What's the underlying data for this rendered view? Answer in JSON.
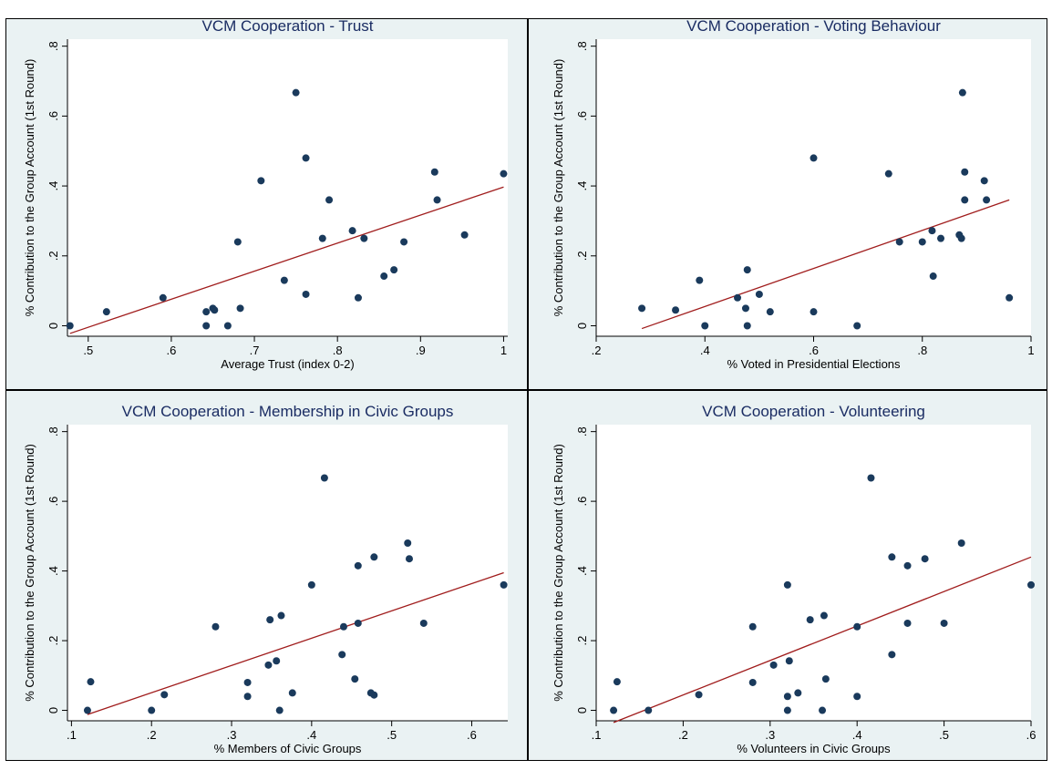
{
  "chart_data": [
    {
      "type": "scatter",
      "title": "VCM Cooperation - Trust",
      "xlabel": "Average Trust (index 0-2)",
      "ylabel": "% Contribution to the Group Account (1st Round)",
      "xlim": [
        0.475,
        1.005
      ],
      "ylim": [
        -0.03,
        0.82
      ],
      "xticks": [
        0.5,
        0.6,
        0.7,
        0.8,
        0.9,
        1
      ],
      "xtick_labels": [
        ".5",
        ".6",
        ".7",
        ".8",
        ".9",
        "1"
      ],
      "yticks": [
        0,
        0.2,
        0.4,
        0.6,
        0.8
      ],
      "ytick_labels": [
        "0",
        ".2",
        ".4",
        ".6",
        ".8"
      ],
      "grid": false,
      "points": [
        [
          0.478,
          0.0
        ],
        [
          0.522,
          0.04
        ],
        [
          0.59,
          0.08
        ],
        [
          0.642,
          0.0
        ],
        [
          0.642,
          0.04
        ],
        [
          0.65,
          0.05
        ],
        [
          0.652,
          0.045
        ],
        [
          0.668,
          0.0
        ],
        [
          0.68,
          0.24
        ],
        [
          0.683,
          0.05
        ],
        [
          0.708,
          0.415
        ],
        [
          0.736,
          0.13
        ],
        [
          0.75,
          0.667
        ],
        [
          0.762,
          0.48
        ],
        [
          0.762,
          0.09
        ],
        [
          0.782,
          0.25
        ],
        [
          0.79,
          0.36
        ],
        [
          0.818,
          0.272
        ],
        [
          0.825,
          0.08
        ],
        [
          0.832,
          0.25
        ],
        [
          0.856,
          0.142
        ],
        [
          0.868,
          0.16
        ],
        [
          0.88,
          0.24
        ],
        [
          0.917,
          0.44
        ],
        [
          0.92,
          0.36
        ],
        [
          0.953,
          0.26
        ],
        [
          1.0,
          0.435
        ]
      ],
      "fit_line": [
        [
          0.478,
          -0.022
        ],
        [
          1.0,
          0.397
        ]
      ]
    },
    {
      "type": "scatter",
      "title": "VCM Cooperation - Voting Behaviour",
      "xlabel": "% Voted in Presidential Elections",
      "ylabel": "% Contribution to the Group Account (1st Round)",
      "xlim": [
        0.2,
        1.0
      ],
      "ylim": [
        -0.03,
        0.82
      ],
      "xticks": [
        0.2,
        0.4,
        0.6,
        0.8,
        1
      ],
      "xtick_labels": [
        ".2",
        ".4",
        ".6",
        ".8",
        "1"
      ],
      "yticks": [
        0,
        0.2,
        0.4,
        0.6,
        0.8
      ],
      "ytick_labels": [
        "0",
        ".2",
        ".4",
        ".6",
        ".8"
      ],
      "grid": false,
      "points": [
        [
          0.284,
          0.05
        ],
        [
          0.346,
          0.045
        ],
        [
          0.39,
          0.13
        ],
        [
          0.4,
          0.0
        ],
        [
          0.46,
          0.08
        ],
        [
          0.475,
          0.05
        ],
        [
          0.478,
          0.16
        ],
        [
          0.478,
          0.0
        ],
        [
          0.5,
          0.09
        ],
        [
          0.52,
          0.04
        ],
        [
          0.6,
          0.48
        ],
        [
          0.6,
          0.04
        ],
        [
          0.68,
          0.0
        ],
        [
          0.738,
          0.435
        ],
        [
          0.758,
          0.24
        ],
        [
          0.8,
          0.24
        ],
        [
          0.818,
          0.272
        ],
        [
          0.82,
          0.142
        ],
        [
          0.834,
          0.25
        ],
        [
          0.868,
          0.26
        ],
        [
          0.872,
          0.25
        ],
        [
          0.874,
          0.667
        ],
        [
          0.878,
          0.44
        ],
        [
          0.878,
          0.36
        ],
        [
          0.914,
          0.415
        ],
        [
          0.918,
          0.36
        ],
        [
          0.96,
          0.08
        ]
      ],
      "fit_line": [
        [
          0.284,
          -0.008
        ],
        [
          0.96,
          0.36
        ]
      ]
    },
    {
      "type": "scatter",
      "title": "VCM Cooperation - Membership in Civic Groups",
      "xlabel": "% Members of Civic Groups",
      "ylabel": "% Contribution to the Group Account (1st Round)",
      "xlim": [
        0.095,
        0.645
      ],
      "ylim": [
        -0.03,
        0.82
      ],
      "xticks": [
        0.1,
        0.2,
        0.3,
        0.4,
        0.5,
        0.6
      ],
      "xtick_labels": [
        ".1",
        ".2",
        ".3",
        ".4",
        ".5",
        ".6"
      ],
      "yticks": [
        0,
        0.2,
        0.4,
        0.6,
        0.8
      ],
      "ytick_labels": [
        "0",
        ".2",
        ".4",
        ".6",
        ".8"
      ],
      "grid": false,
      "points": [
        [
          0.12,
          0.0
        ],
        [
          0.124,
          0.082
        ],
        [
          0.2,
          0.0
        ],
        [
          0.216,
          0.045
        ],
        [
          0.28,
          0.24
        ],
        [
          0.32,
          0.08
        ],
        [
          0.32,
          0.04
        ],
        [
          0.346,
          0.13
        ],
        [
          0.348,
          0.26
        ],
        [
          0.356,
          0.142
        ],
        [
          0.36,
          0.0
        ],
        [
          0.362,
          0.272
        ],
        [
          0.376,
          0.05
        ],
        [
          0.4,
          0.36
        ],
        [
          0.416,
          0.667
        ],
        [
          0.438,
          0.16
        ],
        [
          0.44,
          0.24
        ],
        [
          0.454,
          0.09
        ],
        [
          0.458,
          0.25
        ],
        [
          0.458,
          0.415
        ],
        [
          0.474,
          0.05
        ],
        [
          0.478,
          0.044
        ],
        [
          0.478,
          0.44
        ],
        [
          0.52,
          0.48
        ],
        [
          0.522,
          0.435
        ],
        [
          0.54,
          0.25
        ],
        [
          0.64,
          0.36
        ]
      ],
      "fit_line": [
        [
          0.12,
          -0.012
        ],
        [
          0.64,
          0.395
        ]
      ]
    },
    {
      "type": "scatter",
      "title": "VCM Cooperation - Volunteering",
      "xlabel": "% Volunteers in Civic Groups",
      "ylabel": "% Contribution to the Group Account (1st Round)",
      "xlim": [
        0.1,
        0.6
      ],
      "ylim": [
        -0.03,
        0.82
      ],
      "xticks": [
        0.1,
        0.2,
        0.3,
        0.4,
        0.5,
        0.6
      ],
      "xtick_labels": [
        ".1",
        ".2",
        ".3",
        ".4",
        ".5",
        ".6"
      ],
      "yticks": [
        0,
        0.2,
        0.4,
        0.6,
        0.8
      ],
      "ytick_labels": [
        "0",
        ".2",
        ".4",
        ".6",
        ".8"
      ],
      "grid": false,
      "points": [
        [
          0.12,
          0.0
        ],
        [
          0.124,
          0.082
        ],
        [
          0.16,
          0.0
        ],
        [
          0.218,
          0.045
        ],
        [
          0.28,
          0.24
        ],
        [
          0.28,
          0.08
        ],
        [
          0.304,
          0.13
        ],
        [
          0.32,
          0.36
        ],
        [
          0.32,
          0.04
        ],
        [
          0.32,
          0.0
        ],
        [
          0.322,
          0.142
        ],
        [
          0.332,
          0.05
        ],
        [
          0.346,
          0.26
        ],
        [
          0.36,
          0.0
        ],
        [
          0.362,
          0.272
        ],
        [
          0.364,
          0.09
        ],
        [
          0.4,
          0.24
        ],
        [
          0.4,
          0.04
        ],
        [
          0.416,
          0.667
        ],
        [
          0.44,
          0.44
        ],
        [
          0.44,
          0.16
        ],
        [
          0.458,
          0.415
        ],
        [
          0.458,
          0.25
        ],
        [
          0.478,
          0.435
        ],
        [
          0.5,
          0.25
        ],
        [
          0.52,
          0.48
        ],
        [
          0.6,
          0.36
        ]
      ],
      "fit_line": [
        [
          0.12,
          -0.035
        ],
        [
          0.6,
          0.44
        ]
      ]
    }
  ],
  "colors": {
    "panel_bg": "#eaf2f3",
    "plot_bg": "#ffffff",
    "title": "#1a2c63",
    "marker": "#1a3a5c",
    "fit_line": "#a01c1c",
    "axis": "#000000"
  }
}
